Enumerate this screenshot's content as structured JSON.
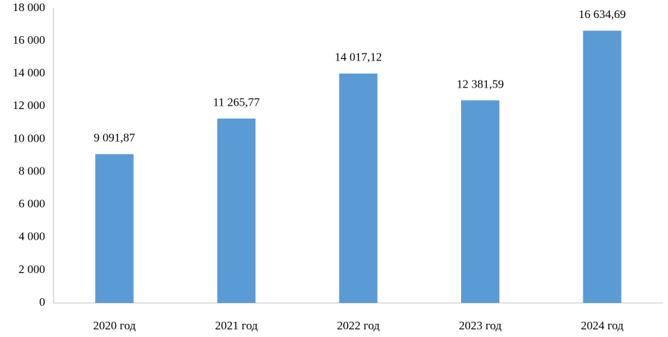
{
  "chart_data": {
    "type": "bar",
    "categories": [
      "2020 год",
      "2021 год",
      "2022 год",
      "2023 год",
      "2024 год"
    ],
    "values": [
      9091.87,
      11265.77,
      14017.12,
      12381.59,
      16634.69
    ],
    "value_labels": [
      "9 091,87",
      "11 265,77",
      "14 017,12",
      "12 381,59",
      "16 634,69"
    ],
    "color": "#5b9bd5",
    "ylim": [
      0,
      18000
    ],
    "yticks": [
      0,
      {
        "value": 2000,
        "label": "2 000"
      },
      {
        "value": 4000,
        "label": "4 000"
      },
      {
        "value": 6000,
        "label": "6 000"
      },
      {
        "value": 8000,
        "label": "8 000"
      },
      {
        "value": 10000,
        "label": "10 000"
      },
      {
        "value": 12000,
        "label": "12 000"
      },
      {
        "value": 14000,
        "label": "14 000"
      },
      {
        "value": 16000,
        "label": "16 000"
      },
      {
        "value": 18000,
        "label": "18 000"
      }
    ],
    "grid": false
  }
}
